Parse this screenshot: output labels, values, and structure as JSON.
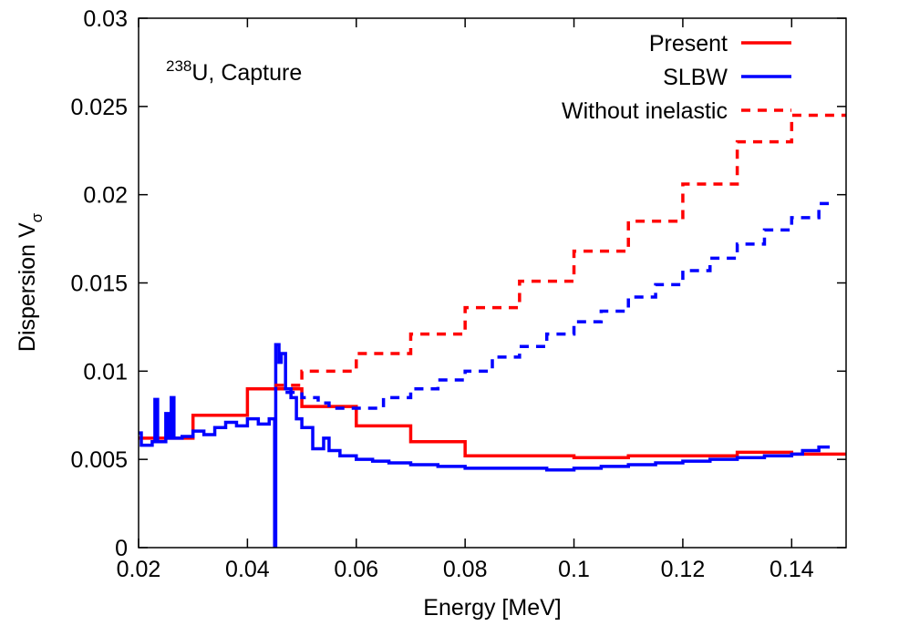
{
  "chart_data": {
    "type": "line",
    "step": "post",
    "annotation": {
      "superscript": "238",
      "text": "U, Capture"
    },
    "xlabel": "Energy [MeV]",
    "ylabel": {
      "text": "Dispersion V",
      "subscript": "σ"
    },
    "xlim": [
      0.02,
      0.15
    ],
    "xticks": [
      0.02,
      0.04,
      0.06,
      0.08,
      0.1,
      0.12,
      0.14
    ],
    "ylim": [
      0,
      0.03
    ],
    "yticks": [
      0,
      0.005,
      0.01,
      0.015,
      0.02,
      0.025,
      0.03
    ],
    "legend": "top-right",
    "series": [
      {
        "name": "Present",
        "color": "#ff0000",
        "dash": false,
        "x": [
          0.02,
          0.03,
          0.04,
          0.05,
          0.06,
          0.07,
          0.08,
          0.09,
          0.1,
          0.11,
          0.12,
          0.13,
          0.14,
          0.15
        ],
        "values": [
          0.0062,
          0.0075,
          0.009,
          0.008,
          0.0069,
          0.006,
          0.0052,
          0.0052,
          0.0051,
          0.0052,
          0.0052,
          0.0054,
          0.0053,
          0.0053
        ]
      },
      {
        "name": "SLBW",
        "color": "#0000ff",
        "dash": false,
        "x": [
          0.02,
          0.0205,
          0.0225,
          0.023,
          0.0235,
          0.025,
          0.0255,
          0.026,
          0.0265,
          0.028,
          0.03,
          0.032,
          0.034,
          0.036,
          0.038,
          0.04,
          0.042,
          0.044,
          0.045,
          0.0452,
          0.0458,
          0.0462,
          0.047,
          0.048,
          0.049,
          0.05,
          0.052,
          0.054,
          0.055,
          0.057,
          0.06,
          0.063,
          0.066,
          0.07,
          0.075,
          0.08,
          0.09,
          0.095,
          0.1,
          0.105,
          0.11,
          0.115,
          0.12,
          0.125,
          0.13,
          0.135,
          0.14,
          0.142,
          0.145,
          0.147
        ],
        "values": [
          0.0065,
          0.0058,
          0.006,
          0.0084,
          0.006,
          0.0076,
          0.0062,
          0.0085,
          0.0062,
          0.0063,
          0.0066,
          0.0064,
          0.0068,
          0.0071,
          0.0069,
          0.0073,
          0.007,
          0.0073,
          0,
          0.0115,
          0.0105,
          0.011,
          0.009,
          0.0085,
          0.0073,
          0.0068,
          0.0056,
          0.0062,
          0.0055,
          0.0052,
          0.005,
          0.0049,
          0.0048,
          0.0047,
          0.0046,
          0.0045,
          0.0045,
          0.0044,
          0.0045,
          0.0046,
          0.0047,
          0.0048,
          0.0049,
          0.005,
          0.0051,
          0.0052,
          0.0053,
          0.0055,
          0.0057,
          0.0057
        ]
      },
      {
        "name": "Without inelastic",
        "color": "#ff0000",
        "dash": true,
        "x": [
          0.045,
          0.05,
          0.06,
          0.07,
          0.08,
          0.09,
          0.1,
          0.11,
          0.12,
          0.13,
          0.14,
          0.15
        ],
        "values": [
          0.0092,
          0.01,
          0.011,
          0.0121,
          0.0136,
          0.0151,
          0.0168,
          0.0185,
          0.0206,
          0.023,
          0.0245,
          0.0245
        ]
      },
      {
        "color": "#0000ff",
        "dash": true,
        "x": [
          0.047,
          0.05,
          0.053,
          0.055,
          0.06,
          0.065,
          0.07,
          0.075,
          0.08,
          0.085,
          0.09,
          0.095,
          0.1,
          0.105,
          0.11,
          0.115,
          0.12,
          0.125,
          0.13,
          0.135,
          0.14,
          0.145,
          0.147
        ],
        "values": [
          0.0088,
          0.0085,
          0.0082,
          0.0079,
          0.0079,
          0.0085,
          0.009,
          0.0095,
          0.01,
          0.0108,
          0.0114,
          0.0121,
          0.0128,
          0.0134,
          0.0142,
          0.0149,
          0.0157,
          0.0164,
          0.0172,
          0.018,
          0.0187,
          0.0195,
          0.0198
        ]
      }
    ]
  }
}
